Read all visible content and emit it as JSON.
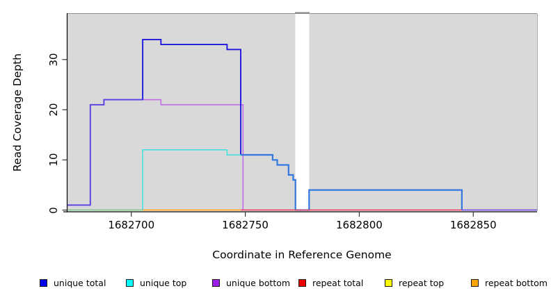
{
  "chart_data": {
    "type": "line",
    "step": true,
    "title": "",
    "xlabel": "Coordinate in Reference Genome",
    "ylabel": "Read Coverage Depth",
    "xlim": [
      1682672,
      1682878
    ],
    "ylim": [
      0,
      39.1
    ],
    "xticks": [
      1682700,
      1682750,
      1682800,
      1682850
    ],
    "yticks": [
      0,
      10,
      20,
      30
    ],
    "grid": false,
    "plot_bg_color": "#d9d9d9",
    "gap_region": {
      "x0": 1682772,
      "x1": 1682778,
      "color": "#ffffff"
    },
    "legend_position": "bottom",
    "series": [
      {
        "name": "unique total",
        "color": "#0000ee",
        "points": [
          [
            1682672,
            1
          ],
          [
            1682682,
            21
          ],
          [
            1682688,
            22
          ],
          [
            1682705,
            34
          ],
          [
            1682713,
            33
          ],
          [
            1682742,
            32
          ],
          [
            1682748,
            11
          ],
          [
            1682762,
            10
          ],
          [
            1682764,
            9
          ],
          [
            1682769,
            7
          ],
          [
            1682771,
            6
          ],
          [
            1682772,
            0
          ],
          [
            1682778,
            4
          ],
          [
            1682845,
            0
          ],
          [
            1682878,
            0
          ]
        ]
      },
      {
        "name": "unique top",
        "color": "#00ffff",
        "points": [
          [
            1682672,
            0
          ],
          [
            1682705,
            12
          ],
          [
            1682742,
            11
          ],
          [
            1682748,
            11
          ],
          [
            1682762,
            10
          ],
          [
            1682764,
            9
          ],
          [
            1682769,
            7
          ],
          [
            1682771,
            6
          ],
          [
            1682772,
            0
          ],
          [
            1682778,
            4
          ],
          [
            1682845,
            0
          ],
          [
            1682878,
            0
          ]
        ]
      },
      {
        "name": "unique bottom",
        "color": "#a020f0",
        "points": [
          [
            1682672,
            1
          ],
          [
            1682682,
            21
          ],
          [
            1682688,
            22
          ],
          [
            1682713,
            21
          ],
          [
            1682749,
            0
          ],
          [
            1682878,
            0
          ]
        ]
      },
      {
        "name": "repeat total",
        "color": "#ee0000",
        "points": [
          [
            1682672,
            0
          ],
          [
            1682878,
            0
          ]
        ]
      },
      {
        "name": "repeat top",
        "color": "#ffff00",
        "points": [
          [
            1682672,
            0
          ],
          [
            1682878,
            0
          ]
        ]
      },
      {
        "name": "repeat bottom",
        "color": "#ffa500",
        "points": [
          [
            1682672,
            0
          ],
          [
            1682878,
            0
          ]
        ]
      }
    ],
    "render_paths": [
      {
        "name": "unique-bottom-line",
        "color": "#c06ee8",
        "width": 1.6,
        "points": [
          [
            1682672,
            1
          ],
          [
            1682682,
            21
          ],
          [
            1682688,
            22
          ],
          [
            1682713,
            21
          ],
          [
            1682749,
            0
          ]
        ]
      },
      {
        "name": "unique-total-bottom-overlap",
        "color": "#5742e2",
        "width": 1.9,
        "points": [
          [
            1682672,
            1
          ],
          [
            1682682,
            21
          ],
          [
            1682688,
            22
          ],
          [
            1682705,
            22
          ]
        ]
      },
      {
        "name": "unique-total-line",
        "color": "#2018dd",
        "width": 1.9,
        "points": [
          [
            1682705,
            22
          ],
          [
            1682705,
            34
          ],
          [
            1682713,
            33
          ],
          [
            1682742,
            32
          ],
          [
            1682748,
            11
          ]
        ]
      },
      {
        "name": "unique-top-line",
        "color": "#3fe0e0",
        "width": 1.5,
        "points": [
          [
            1682705,
            0
          ],
          [
            1682705,
            12
          ],
          [
            1682742,
            11
          ],
          [
            1682748,
            11
          ]
        ]
      },
      {
        "name": "unique-total-top-overlap",
        "color": "#3377e0",
        "width": 2.2,
        "points": [
          [
            1682748,
            11
          ],
          [
            1682762,
            10
          ],
          [
            1682764,
            9
          ],
          [
            1682769,
            7
          ],
          [
            1682771,
            6
          ],
          [
            1682772,
            0
          ],
          [
            1682778,
            4
          ],
          [
            1682845,
            0
          ]
        ]
      },
      {
        "name": "zero-line-repeat-total",
        "color": "#e04868",
        "width": 1.7,
        "points": [
          [
            1682748,
            0
          ],
          [
            1682878,
            0
          ]
        ]
      },
      {
        "name": "zero-line-left-overlap-green",
        "color": "#7fc48f",
        "width": 1.7,
        "points": [
          [
            1682672,
            0
          ],
          [
            1682705,
            0
          ]
        ]
      },
      {
        "name": "zero-line-repeat-bottom",
        "color": "#ffa126",
        "width": 1.7,
        "points": [
          [
            1682705,
            0
          ],
          [
            1682748,
            0
          ]
        ]
      },
      {
        "name": "zero-line-right-overlap-violet",
        "color": "#6f5ce8",
        "width": 1.7,
        "points": [
          [
            1682845,
            0
          ],
          [
            1682878,
            0
          ]
        ]
      }
    ],
    "legend": {
      "items": [
        {
          "label": "unique total",
          "color": "#0000ee"
        },
        {
          "label": "unique top",
          "color": "#00ffff"
        },
        {
          "label": "unique bottom",
          "color": "#9b1fe8"
        },
        {
          "label": "repeat total",
          "color": "#ee0000"
        },
        {
          "label": "repeat top",
          "color": "#ffff00"
        },
        {
          "label": "repeat bottom",
          "color": "#ffa500"
        }
      ]
    }
  }
}
